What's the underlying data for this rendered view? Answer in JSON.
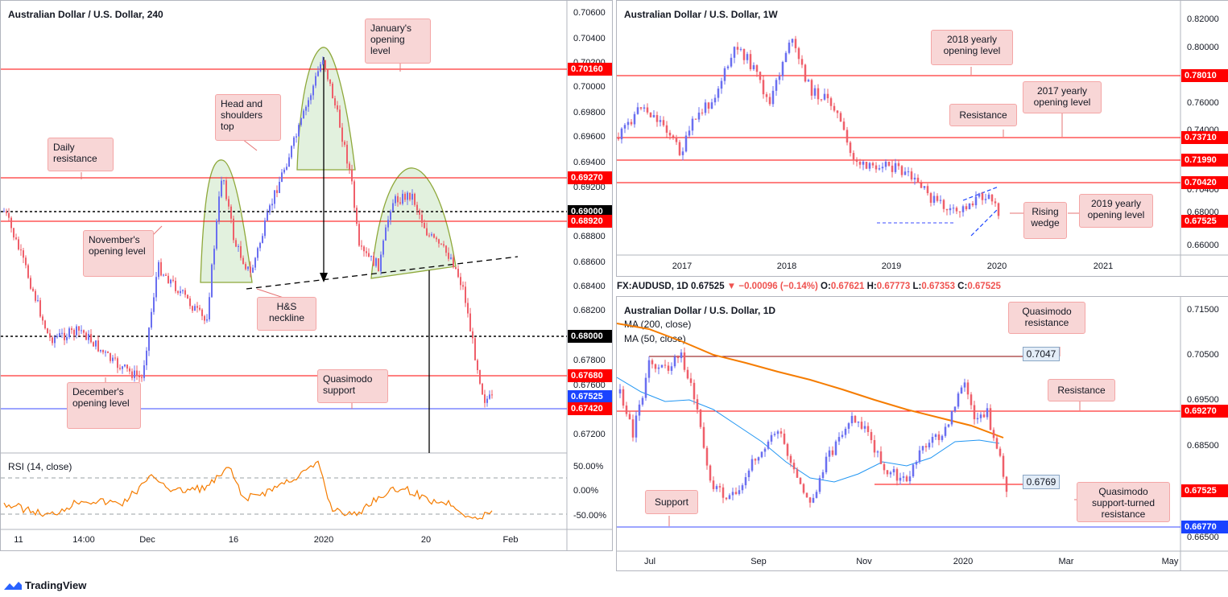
{
  "panel_left": {
    "title": "Australian Dollar / U.S. Dollar, 240",
    "x_ticks": [
      "11",
      "14:00",
      "Dec",
      "16",
      "2020",
      "20",
      "Feb"
    ],
    "y_ticks": [
      "0.70600",
      "0.70400",
      "0.70200",
      "0.70000",
      "0.69800",
      "0.69600",
      "0.69400",
      "0.69200",
      "0.68800",
      "0.68600",
      "0.68400",
      "0.68200",
      "0.67800",
      "0.67600",
      "0.67200"
    ],
    "levels": [
      {
        "value": "0.70160",
        "color": "#ff0000"
      },
      {
        "value": "0.69270",
        "color": "#ff0000"
      },
      {
        "value": "0.69000",
        "color": "#000000"
      },
      {
        "value": "0.68920",
        "color": "#ff0000"
      },
      {
        "value": "0.68000",
        "color": "#000000"
      },
      {
        "value": "0.67680",
        "color": "#ff0000"
      },
      {
        "value": "0.67525",
        "color": "#1a43ff"
      },
      {
        "value": "0.67420",
        "color": "#ff0000"
      }
    ],
    "annotations": {
      "january": "January's opening level",
      "hs_top": "Head and shoulders top",
      "daily_res": "Daily resistance",
      "november": "November's opening level",
      "neckline": "H&S neckline",
      "december": "December's opening level",
      "quasimodo": "Quasimodo support"
    },
    "rsi": {
      "title": "RSI (14, close)",
      "ticks": [
        "50.00%",
        "0.00%",
        "-50.00%"
      ]
    }
  },
  "panel_weekly": {
    "title": "Australian Dollar / U.S. Dollar, 1W",
    "x_ticks": [
      "2017",
      "2018",
      "2019",
      "2020",
      "2021"
    ],
    "y_ticks": [
      "0.82000",
      "0.80000",
      "0.76000",
      "0.74000",
      "0.70400",
      "0.68000",
      "0.66000"
    ],
    "levels": [
      {
        "value": "0.78010",
        "color": "#ff0000"
      },
      {
        "value": "0.73710",
        "color": "#ff0000"
      },
      {
        "value": "0.71990",
        "color": "#ff0000"
      },
      {
        "value": "0.70420",
        "color": "#ff0000"
      },
      {
        "value": "0.67525",
        "color": "#ff0000"
      }
    ],
    "annotations": {
      "y2018": "2018 yearly opening level",
      "y2017": "2017 yearly opening level",
      "resistance": "Resistance",
      "y2019": "2019 yearly opening level",
      "wedge": "Rising wedge"
    }
  },
  "panel_daily": {
    "header": {
      "symbol": "FX:AUDUSD, 1D",
      "last": "0.67525",
      "change": "▼ −0.00096 (−0.14%)",
      "o_label": "O:",
      "o": "0.67621",
      "h_label": "H:",
      "h": "0.67773",
      "l_label": "L:",
      "l": "0.67353",
      "c_label": "C:",
      "c": "0.67525"
    },
    "title": "Australian Dollar / U.S. Dollar, 1D",
    "ma200": "MA (200, close)",
    "ma50": "MA (50, close)",
    "x_ticks": [
      "Jul",
      "Sep",
      "Nov",
      "2020",
      "Mar",
      "May"
    ],
    "y_ticks": [
      "0.71500",
      "0.70500",
      "0.69500",
      "0.68500",
      "0.66500"
    ],
    "levels": [
      {
        "value": "0.69270",
        "color": "#ff0000"
      },
      {
        "value": "0.67525",
        "color": "#ff0000"
      },
      {
        "value": "0.66770",
        "color": "#1a43ff"
      }
    ],
    "line_labels": {
      "l7047": "0.7047",
      "l6769": "0.6769"
    },
    "annotations": {
      "qm_res": "Quasimodo resistance",
      "resistance": "Resistance",
      "support": "Support",
      "qm_str": "Quasimodo support-turned resistance"
    }
  },
  "footer": {
    "brand": "TradingView"
  }
}
